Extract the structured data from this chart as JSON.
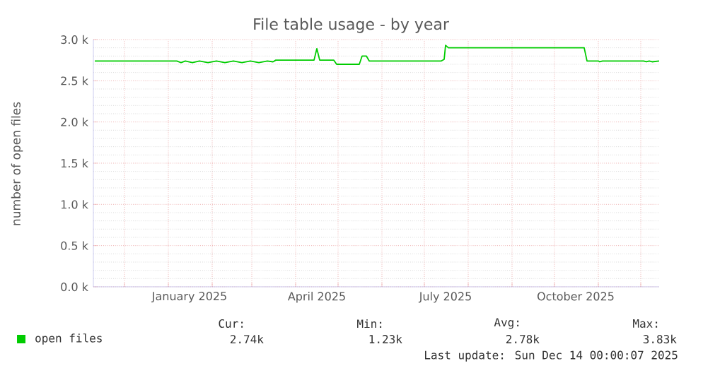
{
  "chart_data": {
    "type": "line",
    "title": "File table usage - by year",
    "ylabel": "number of open files",
    "xlim": [
      "2024-11-09",
      "2025-12-14"
    ],
    "xticks": [
      {
        "value": "2024-12-01",
        "label": null
      },
      {
        "value": "2025-01-01",
        "label": null
      },
      {
        "value": "2025-01-16",
        "label": "January 2025"
      },
      {
        "value": "2025-02-01",
        "label": null
      },
      {
        "value": "2025-03-01",
        "label": null
      },
      {
        "value": "2025-04-01",
        "label": null
      },
      {
        "value": "2025-04-16",
        "label": "April 2025"
      },
      {
        "value": "2025-05-01",
        "label": null
      },
      {
        "value": "2025-06-01",
        "label": null
      },
      {
        "value": "2025-07-01",
        "label": null
      },
      {
        "value": "2025-07-16",
        "label": "July 2025"
      },
      {
        "value": "2025-08-01",
        "label": null
      },
      {
        "value": "2025-09-01",
        "label": null
      },
      {
        "value": "2025-10-01",
        "label": null
      },
      {
        "value": "2025-10-16",
        "label": "October 2025"
      },
      {
        "value": "2025-11-01",
        "label": null
      },
      {
        "value": "2025-12-01",
        "label": null
      }
    ],
    "ylim": [
      0,
      3000
    ],
    "yticks": [
      {
        "value": 0,
        "label": "0.0 k"
      },
      {
        "value": 500,
        "label": "0.5 k"
      },
      {
        "value": 1000,
        "label": "1.0 k"
      },
      {
        "value": 1500,
        "label": "1.5 k"
      },
      {
        "value": 2000,
        "label": "2.0 k"
      },
      {
        "value": 2500,
        "label": "2.5 k"
      },
      {
        "value": 3000,
        "label": "3.0 k"
      }
    ],
    "grid": true,
    "legend": "bottom left",
    "marker": "none",
    "line_style": "solid",
    "x": [
      "2024-11-10",
      "2025-01-07",
      "2025-01-10",
      "2025-01-13",
      "2025-01-18",
      "2025-01-23",
      "2025-01-29",
      "2025-02-04",
      "2025-02-10",
      "2025-02-16",
      "2025-02-22",
      "2025-02-28",
      "2025-03-06",
      "2025-03-12",
      "2025-03-16",
      "2025-03-18",
      "2025-04-14",
      "2025-04-16",
      "2025-04-18",
      "2025-04-28",
      "2025-04-30",
      "2025-05-16",
      "2025-05-18",
      "2025-05-21",
      "2025-05-23",
      "2025-07-13",
      "2025-07-15",
      "2025-07-16",
      "2025-07-18",
      "2025-10-22",
      "2025-10-24",
      "2025-11-01",
      "2025-11-02",
      "2025-11-04",
      "2025-12-03",
      "2025-12-05",
      "2025-12-07",
      "2025-12-09",
      "2025-12-14"
    ],
    "series": [
      {
        "name": "open files",
        "color": "#00cc00",
        "values": [
          2740,
          2740,
          2720,
          2740,
          2720,
          2740,
          2720,
          2740,
          2720,
          2740,
          2720,
          2740,
          2720,
          2740,
          2730,
          2750,
          2750,
          2890,
          2750,
          2750,
          2700,
          2700,
          2800,
          2800,
          2740,
          2740,
          2760,
          2930,
          2900,
          2900,
          2740,
          2740,
          2730,
          2740,
          2740,
          2730,
          2740,
          2730,
          2740
        ]
      }
    ],
    "annotations": [
      "Cur:",
      "2.74k",
      "Min:",
      "1.23k",
      "Avg:",
      "2.78k",
      "Max:",
      "3.83k",
      "Last update: Sun Dec 14 00:00:07 2025"
    ]
  }
}
